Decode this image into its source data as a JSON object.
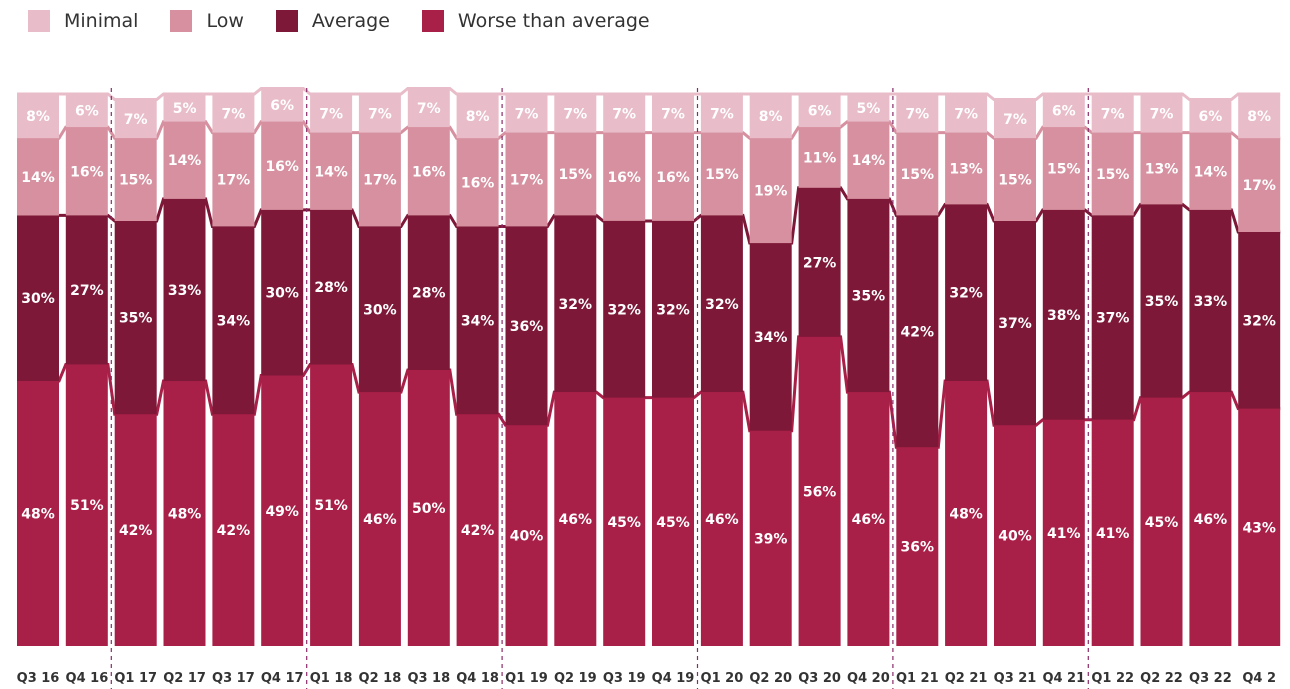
{
  "legend": {
    "items": [
      {
        "label": "Minimal",
        "color": "#e8bcc9"
      },
      {
        "label": "Low",
        "color": "#d6909f"
      },
      {
        "label": "Average",
        "color": "#7d1838"
      },
      {
        "label": "Worse than average",
        "color": "#a81f48"
      }
    ]
  },
  "chart_data": {
    "type": "bar",
    "stacked": true,
    "percent_stacked": true,
    "categories": [
      "Q3 16",
      "Q4 16",
      "Q1 17",
      "Q2 17",
      "Q3 17",
      "Q4 17",
      "Q1 18",
      "Q2 18",
      "Q3 18",
      "Q4 18",
      "Q1 19",
      "Q2 19",
      "Q3 19",
      "Q4 19",
      "Q1 20",
      "Q2 20",
      "Q3 20",
      "Q4 20",
      "Q1 21",
      "Q2 21",
      "Q3 21",
      "Q4 21",
      "Q1 22",
      "Q2 22",
      "Q3 22",
      "Q4 2"
    ],
    "series": [
      {
        "name": "Worse than average",
        "color": "#a81f48",
        "values": [
          48,
          51,
          42,
          48,
          42,
          49,
          51,
          46,
          50,
          42,
          40,
          46,
          45,
          45,
          46,
          39,
          56,
          46,
          36,
          48,
          40,
          41,
          41,
          45,
          46,
          43
        ]
      },
      {
        "name": "Average",
        "color": "#7d1838",
        "values": [
          30,
          27,
          35,
          33,
          34,
          30,
          28,
          30,
          28,
          34,
          36,
          32,
          32,
          32,
          32,
          34,
          27,
          35,
          42,
          32,
          37,
          38,
          37,
          35,
          33,
          32
        ]
      },
      {
        "name": "Low",
        "color": "#d6909f",
        "values": [
          14,
          16,
          15,
          14,
          17,
          16,
          14,
          17,
          16,
          16,
          17,
          15,
          16,
          16,
          15,
          19,
          11,
          14,
          15,
          13,
          15,
          15,
          15,
          13,
          14,
          17
        ]
      },
      {
        "name": "Minimal",
        "color": "#e8bcc9",
        "values": [
          8,
          6,
          7,
          5,
          7,
          6,
          7,
          7,
          7,
          8,
          7,
          7,
          7,
          7,
          7,
          8,
          6,
          5,
          7,
          7,
          7,
          6,
          7,
          7,
          6,
          8
        ]
      }
    ],
    "value_suffix": "%",
    "year_separators_after": [
      "Q4 16",
      "Q4 17",
      "Q4 18",
      "Q4 19",
      "Q4 20",
      "Q4 21"
    ],
    "grid": false,
    "legend_position": "top-left",
    "title": "",
    "xlabel": "",
    "ylabel": ""
  }
}
